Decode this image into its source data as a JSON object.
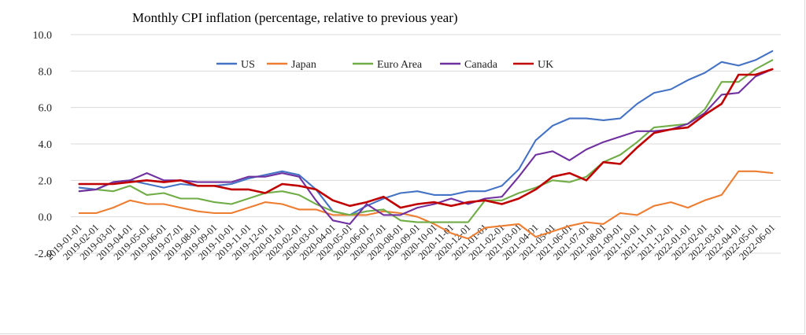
{
  "chart_data": {
    "type": "line",
    "title": "Monthly CPI inflation (percentage, relative to previous year)",
    "xlabel": "",
    "ylabel": "",
    "ylim": [
      -2.0,
      10.0
    ],
    "yticks": [
      "-2.0",
      "0.0",
      "2.0",
      "4.0",
      "6.0",
      "8.0",
      "10.0"
    ],
    "grid": "horizontal",
    "legend_position": "top",
    "categories": [
      "2019-01-01",
      "2019-02-01",
      "2019-03-01",
      "2019-04-01",
      "2019-05-01",
      "2019-06-01",
      "2019-07-01",
      "2019-08-01",
      "2019-09-01",
      "2019-10-01",
      "2019-11-01",
      "2019-12-01",
      "2020-01-01",
      "2020-02-01",
      "2020-03-01",
      "2020-04-01",
      "2020-05-01",
      "2020-06-01",
      "2020-07-01",
      "2020-08-01",
      "2020-09-01",
      "2020-10-01",
      "2020-11-01",
      "2020-12-01",
      "2021-01-01",
      "2021-02-01",
      "2021-03-01",
      "2021-04-01",
      "2021-05-01",
      "2021-06-01",
      "2021-07-01",
      "2021-08-01",
      "2021-09-01",
      "2021-10-01",
      "2021-11-01",
      "2021-12-01",
      "2022-01-01",
      "2022-02-01",
      "2022-03-01",
      "2022-04-01",
      "2022-05-01",
      "2022-06-01"
    ],
    "series": [
      {
        "name": "US",
        "color": "#4472c4",
        "values": [
          1.6,
          1.5,
          1.9,
          2.0,
          1.8,
          1.6,
          1.8,
          1.7,
          1.7,
          1.8,
          2.1,
          2.3,
          2.5,
          2.3,
          1.5,
          0.3,
          0.1,
          0.6,
          1.0,
          1.3,
          1.4,
          1.2,
          1.2,
          1.4,
          1.4,
          1.7,
          2.6,
          4.2,
          5.0,
          5.4,
          5.4,
          5.3,
          5.4,
          6.2,
          6.8,
          7.0,
          7.5,
          7.9,
          8.5,
          8.3,
          8.6,
          9.1
        ]
      },
      {
        "name": "Japan",
        "color": "#ed7d31",
        "values": [
          0.2,
          0.2,
          0.5,
          0.9,
          0.7,
          0.7,
          0.5,
          0.3,
          0.2,
          0.2,
          0.5,
          0.8,
          0.7,
          0.4,
          0.4,
          0.1,
          0.1,
          0.1,
          0.3,
          0.2,
          0.0,
          -0.4,
          -0.9,
          -1.2,
          -0.6,
          -0.5,
          -0.4,
          -1.1,
          -0.8,
          -0.5,
          -0.3,
          -0.4,
          0.2,
          0.1,
          0.6,
          0.8,
          0.5,
          0.9,
          1.2,
          2.5,
          2.5,
          2.4
        ]
      },
      {
        "name": "Euro Area",
        "color": "#70ad47",
        "values": [
          1.4,
          1.5,
          1.4,
          1.7,
          1.2,
          1.3,
          1.0,
          1.0,
          0.8,
          0.7,
          1.0,
          1.3,
          1.4,
          1.2,
          0.7,
          0.3,
          0.1,
          0.3,
          0.4,
          -0.2,
          -0.3,
          -0.3,
          -0.3,
          -0.3,
          0.9,
          0.9,
          1.3,
          1.6,
          2.0,
          1.9,
          2.2,
          3.0,
          3.4,
          4.1,
          4.9,
          5.0,
          5.1,
          5.9,
          7.4,
          7.4,
          8.1,
          8.6
        ]
      },
      {
        "name": "Canada",
        "color": "#7030a0",
        "values": [
          1.4,
          1.5,
          1.9,
          2.0,
          2.4,
          2.0,
          2.0,
          1.9,
          1.9,
          1.9,
          2.2,
          2.2,
          2.4,
          2.2,
          0.9,
          -0.2,
          -0.4,
          0.7,
          0.1,
          0.1,
          0.5,
          0.7,
          1.0,
          0.7,
          1.0,
          1.1,
          2.2,
          3.4,
          3.6,
          3.1,
          3.7,
          4.1,
          4.4,
          4.7,
          4.7,
          4.8,
          5.1,
          5.7,
          6.7,
          6.8,
          7.7,
          8.1
        ]
      },
      {
        "name": "UK",
        "color": "#c00000",
        "values": [
          1.8,
          1.8,
          1.8,
          1.9,
          2.0,
          1.9,
          2.0,
          1.7,
          1.7,
          1.5,
          1.5,
          1.3,
          1.8,
          1.7,
          1.5,
          0.9,
          0.6,
          0.8,
          1.1,
          0.5,
          0.7,
          0.8,
          0.6,
          0.8,
          0.9,
          0.7,
          1.0,
          1.5,
          2.2,
          2.4,
          2.0,
          3.0,
          2.9,
          3.8,
          4.6,
          4.8,
          4.9,
          5.6,
          6.2,
          7.8,
          7.8,
          8.1
        ]
      }
    ]
  }
}
